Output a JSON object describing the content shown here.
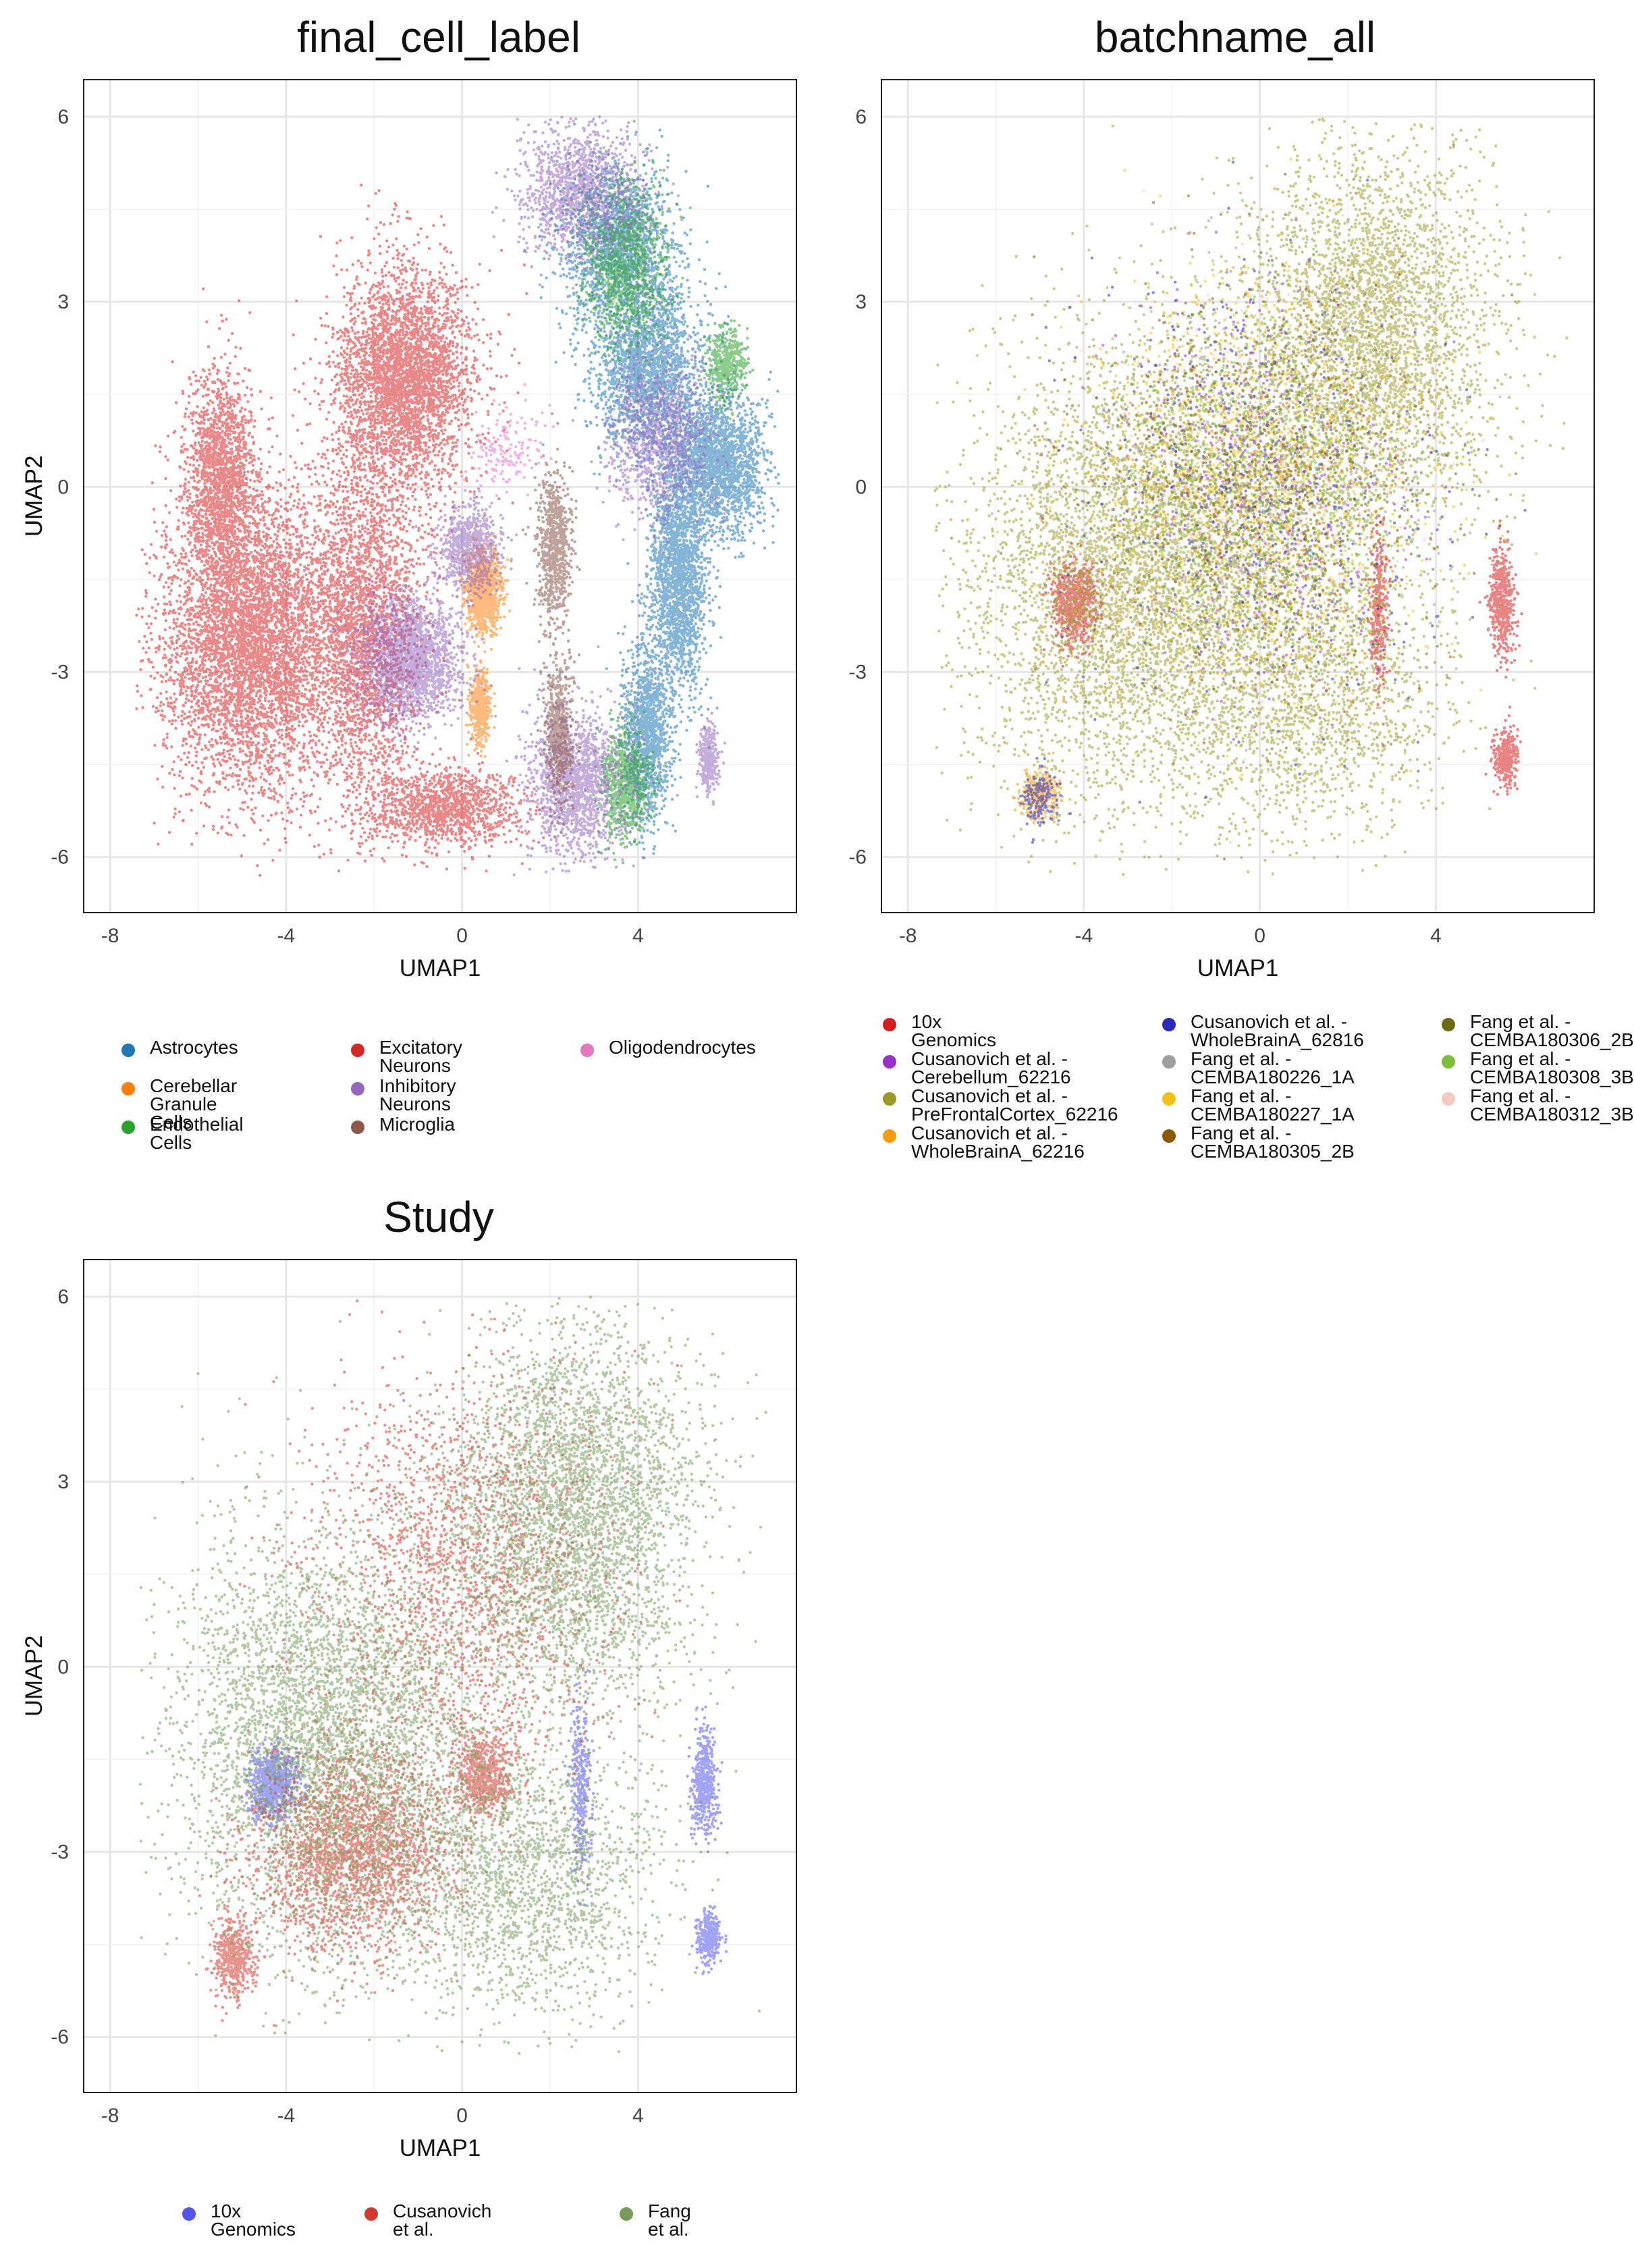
{
  "chart_data": [
    {
      "type": "scatter",
      "title": "final_cell_label",
      "xlabel": "UMAP1",
      "ylabel": "UMAP2",
      "xlim": [
        -8.6,
        7.6
      ],
      "ylim": [
        -6.9,
        6.6
      ],
      "xticks": [
        -8,
        -4,
        0,
        4
      ],
      "yticks": [
        -6,
        -3,
        0,
        3,
        6
      ],
      "grid": true,
      "legend_position": "bottom",
      "series": [
        {
          "name": "Astrocytes",
          "color": "#1F77B4",
          "regions": [
            [
              5.8,
              0.4,
              1.0,
              1.0,
              0.13
            ],
            [
              4.2,
              2.0,
              1.1,
              1.3,
              0.13
            ],
            [
              3.5,
              4.0,
              1.1,
              1.1,
              0.1
            ],
            [
              4.9,
              -1.5,
              0.6,
              1.6,
              0.12
            ],
            [
              4.2,
              -4.0,
              0.5,
              1.3,
              0.08
            ]
          ]
        },
        {
          "name": "Cerebellar Granule\nCells",
          "color": "#FF7F0E",
          "regions": [
            [
              0.5,
              -1.7,
              0.35,
              0.6,
              0.06
            ],
            [
              0.4,
              -3.6,
              0.2,
              0.5,
              0.03
            ]
          ]
        },
        {
          "name": "Endothelial Cells",
          "color": "#2CA02C",
          "regions": [
            [
              3.7,
              3.6,
              0.9,
              1.2,
              0.07
            ],
            [
              6.0,
              2.0,
              0.4,
              0.5,
              0.03
            ],
            [
              3.7,
              -4.8,
              0.5,
              0.8,
              0.05
            ]
          ]
        },
        {
          "name": "Excitatory Neurons",
          "color": "#D62728",
          "regions": [
            [
              -4.8,
              -2.5,
              1.8,
              2.2,
              0.32
            ],
            [
              -5.5,
              0.2,
              0.7,
              1.5,
              0.1
            ],
            [
              -1.3,
              1.8,
              1.4,
              1.6,
              0.22
            ],
            [
              -2.2,
              -2.2,
              1.2,
              2.5,
              0.17
            ],
            [
              -0.4,
              -5.2,
              1.6,
              0.6,
              0.08
            ]
          ]
        },
        {
          "name": "Inhibitory Neurons",
          "color": "#9467BD",
          "regions": [
            [
              -1.2,
              -2.8,
              1.0,
              0.9,
              0.13
            ],
            [
              0.2,
              -1.0,
              0.6,
              0.6,
              0.05
            ],
            [
              2.6,
              -4.8,
              1.0,
              1.1,
              0.09
            ],
            [
              2.7,
              4.8,
              1.2,
              1.0,
              0.08
            ],
            [
              4.5,
              0.8,
              1.0,
              1.1,
              0.07
            ],
            [
              5.6,
              -4.4,
              0.2,
              0.5,
              0.02
            ]
          ]
        },
        {
          "name": "Microglia",
          "color": "#8C564B",
          "regions": [
            [
              2.1,
              -1.0,
              0.35,
              1.1,
              0.05
            ],
            [
              2.2,
              -4.0,
              0.28,
              1.0,
              0.04
            ]
          ]
        },
        {
          "name": "Oligodendrocytes",
          "color": "#E377C2",
          "regions": [
            [
              1.0,
              0.6,
              0.8,
              0.6,
              0.01
            ]
          ]
        }
      ]
    },
    {
      "type": "scatter",
      "title": "batchname_all",
      "xlabel": "UMAP1",
      "ylabel": "UMAP2",
      "xlim": [
        -8.6,
        7.6
      ],
      "ylim": [
        -6.9,
        6.6
      ],
      "xticks": [
        -8,
        -4,
        0,
        4
      ],
      "yticks": [
        -6,
        -3,
        0,
        3,
        6
      ],
      "grid": true,
      "legend_position": "bottom",
      "series": [
        {
          "name": "10x Genomics",
          "color": "#D51F1F",
          "regions": [
            [
              -4.2,
              -1.9,
              0.5,
              0.6,
              0.04
            ],
            [
              2.7,
              -2.0,
              0.2,
              1.2,
              0.02
            ],
            [
              5.5,
              -1.9,
              0.25,
              0.8,
              0.03
            ],
            [
              5.6,
              -4.4,
              0.25,
              0.4,
              0.02
            ]
          ]
        },
        {
          "name": "Cusanovich et al. -\nCerebellum_62216",
          "color": "#9B30C8",
          "regions": [
            [
              0.0,
              0.0,
              3.0,
              3.0,
              0.04
            ]
          ]
        },
        {
          "name": "Cusanovich et al. -\nPreFrontalCortex_62216",
          "color": "#9E9A2A",
          "regions": [
            [
              -3.0,
              -1.5,
              3.2,
              3.2,
              0.28
            ],
            [
              2.5,
              2.5,
              2.5,
              2.8,
              0.22
            ],
            [
              1.0,
              -3.5,
              3.0,
              2.0,
              0.1
            ]
          ]
        },
        {
          "name": "Cusanovich et al. -\nWholeBrainA_62216",
          "color": "#F39C12",
          "regions": [
            [
              -5.0,
              -5.0,
              0.4,
              0.4,
              0.02
            ],
            [
              0.0,
              0.0,
              3.0,
              3.0,
              0.02
            ]
          ]
        },
        {
          "name": "Cusanovich et al. -\nWholeBrainA_62816",
          "color": "#2A2AB8",
          "regions": [
            [
              0.0,
              0.0,
              3.5,
              3.0,
              0.04
            ],
            [
              -5.0,
              -5.0,
              0.4,
              0.4,
              0.01
            ]
          ]
        },
        {
          "name": "Fang et al. -\nCEMBA180226_1A",
          "color": "#9E9E9E",
          "regions": [
            [
              0.0,
              0.0,
              3.5,
              3.0,
              0.03
            ]
          ]
        },
        {
          "name": "Fang et al. -\nCEMBA180227_1A",
          "color": "#F2C21B",
          "regions": [
            [
              0.0,
              0.0,
              3.5,
              3.0,
              0.1
            ]
          ]
        },
        {
          "name": "Fang et al. -\nCEMBA180305_2B",
          "color": "#8B5A00",
          "regions": [
            [
              0.0,
              0.0,
              3.5,
              3.0,
              0.03
            ]
          ]
        },
        {
          "name": "Fang et al. -\nCEMBA180306_2B",
          "color": "#6B6B14",
          "regions": [
            [
              0.0,
              0.0,
              3.5,
              3.0,
              0.05
            ]
          ]
        },
        {
          "name": "Fang et al. -\nCEMBA180308_3B",
          "color": "#7CBF3A",
          "regions": [
            [
              0.0,
              0.0,
              3.5,
              3.0,
              0.08
            ]
          ]
        },
        {
          "name": "Fang et al. -\nCEMBA180312_3B",
          "color": "#F4C9C0",
          "regions": [
            [
              0.0,
              0.0,
              3.5,
              3.0,
              0.02
            ]
          ]
        }
      ]
    },
    {
      "type": "scatter",
      "title": "Study",
      "xlabel": "UMAP1",
      "ylabel": "UMAP2",
      "xlim": [
        -8.6,
        7.6
      ],
      "ylim": [
        -6.9,
        6.6
      ],
      "xticks": [
        -8,
        -4,
        0,
        4
      ],
      "yticks": [
        -6,
        -3,
        0,
        3,
        6
      ],
      "grid": true,
      "legend_position": "bottom",
      "series": [
        {
          "name": "10x Genomics",
          "color": "#5555EE",
          "regions": [
            [
              -4.3,
              -1.9,
              0.5,
              0.5,
              0.05
            ],
            [
              2.7,
              -2.0,
              0.2,
              1.2,
              0.02
            ],
            [
              5.5,
              -1.9,
              0.25,
              0.8,
              0.03
            ],
            [
              5.6,
              -4.4,
              0.25,
              0.4,
              0.02
            ]
          ]
        },
        {
          "name": "Cusanovich et al.",
          "color": "#D13A30",
          "regions": [
            [
              -2.5,
              -3.0,
              2.0,
              1.5,
              0.14
            ],
            [
              0.5,
              -1.8,
              0.6,
              0.6,
              0.04
            ],
            [
              -5.2,
              -4.7,
              0.4,
              0.6,
              0.03
            ],
            [
              0.0,
              1.5,
              3.0,
              3.0,
              0.12
            ]
          ]
        },
        {
          "name": "Fang et al.",
          "color": "#779A5B",
          "regions": [
            [
              -3.0,
              -1.2,
              3.2,
              3.2,
              0.3
            ],
            [
              2.5,
              2.5,
              2.5,
              2.8,
              0.25
            ],
            [
              1.5,
              -3.5,
              2.8,
              2.0,
              0.12
            ]
          ]
        }
      ]
    }
  ],
  "legends": {
    "final_cell_label": [
      "Astrocytes",
      "Cerebellar Granule\nCells",
      "Endothelial Cells",
      "Excitatory Neurons",
      "Inhibitory Neurons",
      "Microglia",
      "Oligodendrocytes"
    ],
    "batchname_all": [
      "10x Genomics",
      "Cusanovich et al. -\nCerebellum_62216",
      "Cusanovich et al. -\nPreFrontalCortex_62216",
      "Cusanovich et al. -\nWholeBrainA_62216",
      "Cusanovich et al. -\nWholeBrainA_62816",
      "Fang et al. -\nCEMBA180226_1A",
      "Fang et al. -\nCEMBA180227_1A",
      "Fang et al. -\nCEMBA180305_2B",
      "Fang et al. -\nCEMBA180306_2B",
      "Fang et al. -\nCEMBA180308_3B",
      "Fang et al. -\nCEMBA180312_3B"
    ],
    "Study": [
      "10x Genomics",
      "Cusanovich et al.",
      "Fang et al."
    ]
  }
}
